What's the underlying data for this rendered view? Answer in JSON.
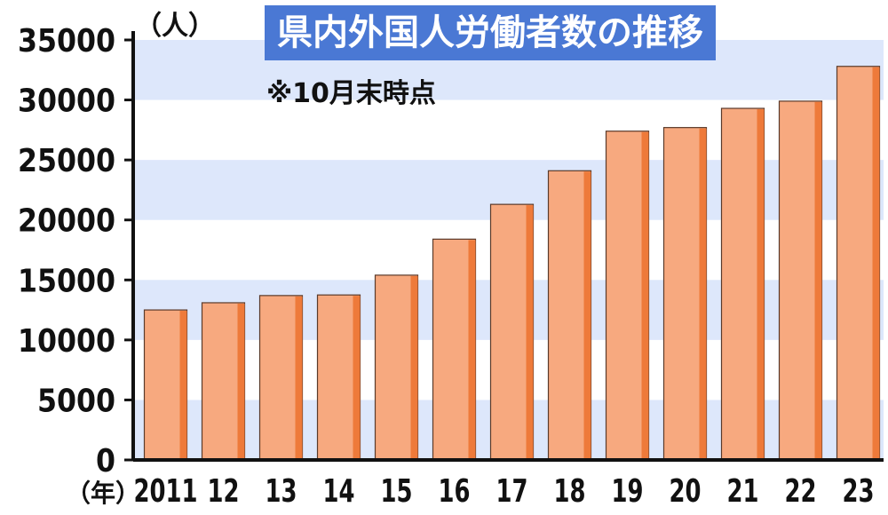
{
  "chart_data": {
    "type": "bar",
    "title": "県内外国人労働者数の推移",
    "note": "※10月末時点",
    "ylabel_unit": "（人）",
    "xlabel_unit": "（年）",
    "categories": [
      "2011",
      "12",
      "13",
      "14",
      "15",
      "16",
      "17",
      "18",
      "19",
      "20",
      "21",
      "22",
      "23"
    ],
    "values": [
      12500,
      13100,
      13700,
      13750,
      15400,
      18400,
      21300,
      24100,
      27400,
      27700,
      29300,
      29900,
      32800
    ],
    "ylim": [
      0,
      35000
    ],
    "yticks": [
      0,
      5000,
      10000,
      15000,
      20000,
      25000,
      30000,
      35000
    ],
    "grid": "alternating horizontal bands",
    "colors": {
      "bar_face": "#f7a97f",
      "bar_side": "#ee7a3a",
      "band": "#dde7fb",
      "title_bg": "#4a78d4",
      "title_text": "#ffffff"
    }
  }
}
